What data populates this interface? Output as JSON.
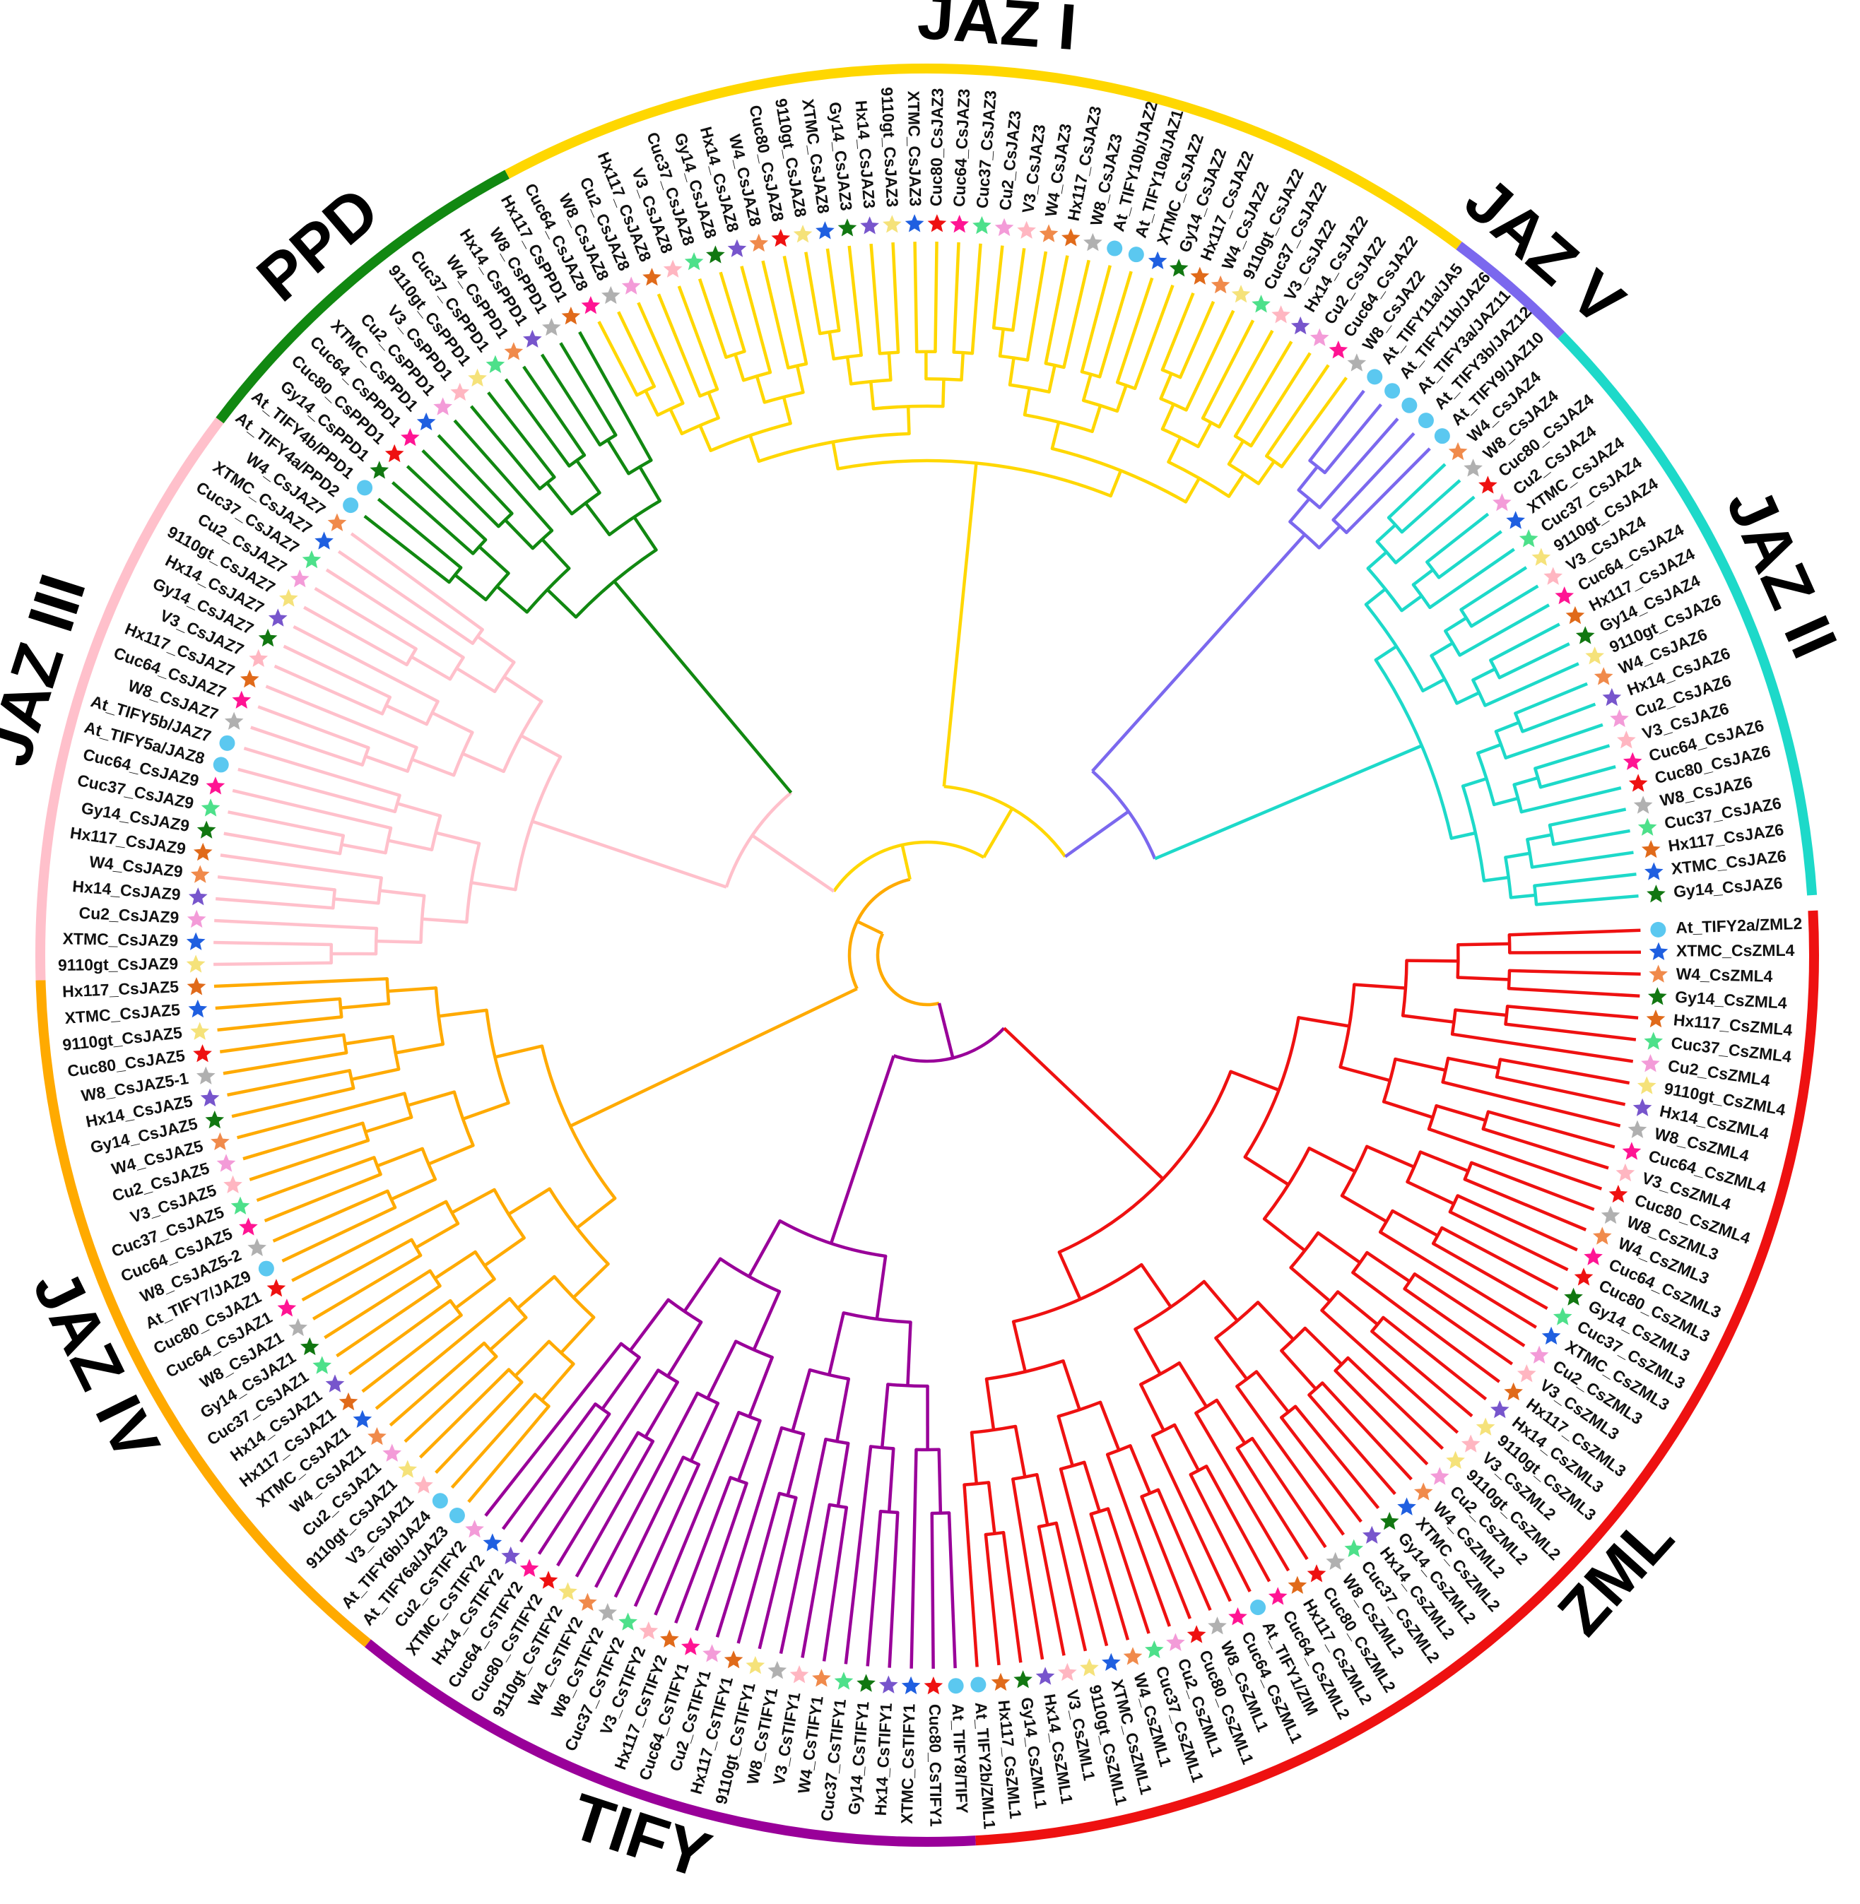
{
  "tree": {
    "clades": [
      {
        "name": "JAZ I",
        "color": "#FFD700"
      },
      {
        "name": "JAZ V",
        "color": "#7B68EE"
      },
      {
        "name": "JAZ II",
        "color": "#1DD9C9"
      },
      {
        "name": "ZML",
        "color": "#EE1111"
      },
      {
        "name": "TIFY",
        "color": "#990099"
      },
      {
        "name": "JAZ IV",
        "color": "#FFAA00"
      },
      {
        "name": "JAZ III",
        "color": "#FFC0CB"
      },
      {
        "name": "PPD",
        "color": "#118811"
      }
    ],
    "legend_markers": {
      "At": "circle",
      "XTMC": "blue-star",
      "W4": "orange-star",
      "Gy14": "green-star",
      "Hx117": "dark-orange-star",
      "Cuc37": "light-green-star",
      "Cu2": "pink-star",
      "9110gt": "yellow-star",
      "Hx14": "purple-star",
      "W8": "grey-star",
      "Cuc64": "magenta-star",
      "V3": "light-pink-star",
      "Cuc80": "red-star"
    },
    "leaves": [
      {
        "label": "At_TIFY2a/ZML2",
        "clade": 3
      },
      {
        "label": "XTMC_CsZML4",
        "clade": 3
      },
      {
        "label": "W4_CsZML4",
        "clade": 3
      },
      {
        "label": "Gy14_CsZML4",
        "clade": 3
      },
      {
        "label": "Hx117_CsZML4",
        "clade": 3
      },
      {
        "label": "Cuc37_CsZML4",
        "clade": 3
      },
      {
        "label": "Cu2_CsZML4",
        "clade": 3
      },
      {
        "label": "9110gt_CsZML4",
        "clade": 3
      },
      {
        "label": "Hx14_CsZML4",
        "clade": 3
      },
      {
        "label": "W8_CsZML4",
        "clade": 3
      },
      {
        "label": "Cuc64_CsZML4",
        "clade": 3
      },
      {
        "label": "V3_CsZML4",
        "clade": 3
      },
      {
        "label": "Cuc80_CsZML4",
        "clade": 3
      },
      {
        "label": "W8_CsZML3",
        "clade": 3
      },
      {
        "label": "W4_CsZML3",
        "clade": 3
      },
      {
        "label": "Cuc64_CsZML3",
        "clade": 3
      },
      {
        "label": "Cuc80_CsZML3",
        "clade": 3
      },
      {
        "label": "Gy14_CsZML3",
        "clade": 3
      },
      {
        "label": "Cuc37_CsZML3",
        "clade": 3
      },
      {
        "label": "XTMC_CsZML3",
        "clade": 3
      },
      {
        "label": "Cu2_CsZML3",
        "clade": 3
      },
      {
        "label": "V3_CsZML3",
        "clade": 3
      },
      {
        "label": "Hx117_CsZML3",
        "clade": 3
      },
      {
        "label": "Hx14_CsZML3",
        "clade": 3
      },
      {
        "label": "9110gt_CsZML3",
        "clade": 3
      },
      {
        "label": "V3_CsZML2",
        "clade": 3
      },
      {
        "label": "9110gt_CsZML2",
        "clade": 3
      },
      {
        "label": "Cu2_CsZML2",
        "clade": 3
      },
      {
        "label": "W4_CsZML2",
        "clade": 3
      },
      {
        "label": "XTMC_CsZML2",
        "clade": 3
      },
      {
        "label": "Gy14_CsZML2",
        "clade": 3
      },
      {
        "label": "Hx14_CsZML2",
        "clade": 3
      },
      {
        "label": "Cuc37_CsZML2",
        "clade": 3
      },
      {
        "label": "W8_CsZML2",
        "clade": 3
      },
      {
        "label": "Cuc80_CsZML2",
        "clade": 3
      },
      {
        "label": "Hx117_CsZML2",
        "clade": 3
      },
      {
        "label": "Cuc64_CsZML2",
        "clade": 3
      },
      {
        "label": "At_TIFY1/ZIM",
        "clade": 3
      },
      {
        "label": "Cuc64_CsZML1",
        "clade": 3
      },
      {
        "label": "W8_CsZML1",
        "clade": 3
      },
      {
        "label": "Cuc80_CsZML1",
        "clade": 3
      },
      {
        "label": "Cu2_CsZML1",
        "clade": 3
      },
      {
        "label": "Cuc37_CsZML1",
        "clade": 3
      },
      {
        "label": "W4_CsZML1",
        "clade": 3
      },
      {
        "label": "XTMC_CsZML1",
        "clade": 3
      },
      {
        "label": "9110gt_CsZML1",
        "clade": 3
      },
      {
        "label": "V3_CsZML1",
        "clade": 3
      },
      {
        "label": "Hx14_CsZML1",
        "clade": 3
      },
      {
        "label": "Gy14_CsZML1",
        "clade": 3
      },
      {
        "label": "Hx117_CsZML1",
        "clade": 3
      },
      {
        "label": "At_TIFY2b/ZML1",
        "clade": 3
      },
      {
        "label": "At_TIFY8/TIFY",
        "clade": 4
      },
      {
        "label": "Cuc80_CsTIFY1",
        "clade": 4
      },
      {
        "label": "XTMC_CsTIFY1",
        "clade": 4
      },
      {
        "label": "Hx14_CsTIFY1",
        "clade": 4
      },
      {
        "label": "Gy14_CsTIFY1",
        "clade": 4
      },
      {
        "label": "Cuc37_CsTIFY1",
        "clade": 4
      },
      {
        "label": "W4_CsTIFY1",
        "clade": 4
      },
      {
        "label": "V3_CsTIFY1",
        "clade": 4
      },
      {
        "label": "W8_CsTIFY1",
        "clade": 4
      },
      {
        "label": "9110gt_CsTIFY1",
        "clade": 4
      },
      {
        "label": "Hx117_CsTIFY1",
        "clade": 4
      },
      {
        "label": "Cu2_CsTIFY1",
        "clade": 4
      },
      {
        "label": "Cuc64_CsTIFY1",
        "clade": 4
      },
      {
        "label": "Hx117_CsTIFY2",
        "clade": 4
      },
      {
        "label": "V3_CsTIFY2",
        "clade": 4
      },
      {
        "label": "Cuc37_CsTIFY2",
        "clade": 4
      },
      {
        "label": "W8_CsTIFY2",
        "clade": 4
      },
      {
        "label": "W4_CsTIFY2",
        "clade": 4
      },
      {
        "label": "9110gt_CsTIFY2",
        "clade": 4
      },
      {
        "label": "Cuc80_CsTIFY2",
        "clade": 4
      },
      {
        "label": "Cuc64_CsTIFY2",
        "clade": 4
      },
      {
        "label": "Hx14_CsTIFY2",
        "clade": 4
      },
      {
        "label": "XTMC_CsTIFY2",
        "clade": 4
      },
      {
        "label": "Cu2_CsTIFY2",
        "clade": 4
      },
      {
        "label": "At_TIFY6a/JAZ3",
        "clade": 5
      },
      {
        "label": "At_TIFY6b/JAZ4",
        "clade": 5
      },
      {
        "label": "V3_CsJAZ1",
        "clade": 5
      },
      {
        "label": "9110gt_CsJAZ1",
        "clade": 5
      },
      {
        "label": "Cu2_CsJAZ1",
        "clade": 5
      },
      {
        "label": "W4_CsJAZ1",
        "clade": 5
      },
      {
        "label": "XTMC_CsJAZ1",
        "clade": 5
      },
      {
        "label": "Hx117_CsJAZ1",
        "clade": 5
      },
      {
        "label": "Hx14_CsJAZ1",
        "clade": 5
      },
      {
        "label": "Cuc37_CsJAZ1",
        "clade": 5
      },
      {
        "label": "Gy14_CsJAZ1",
        "clade": 5
      },
      {
        "label": "W8_CsJAZ1",
        "clade": 5
      },
      {
        "label": "Cuc64_CsJAZ1",
        "clade": 5
      },
      {
        "label": "Cuc80_CsJAZ1",
        "clade": 5
      },
      {
        "label": "At_TIFY7/JAZ9",
        "clade": 5
      },
      {
        "label": "W8_CsJAZ5-2",
        "clade": 5
      },
      {
        "label": "Cuc64_CsJAZ5",
        "clade": 5
      },
      {
        "label": "Cuc37_CsJAZ5",
        "clade": 5
      },
      {
        "label": "V3_CsJAZ5",
        "clade": 5
      },
      {
        "label": "Cu2_CsJAZ5",
        "clade": 5
      },
      {
        "label": "W4_CsJAZ5",
        "clade": 5
      },
      {
        "label": "Gy14_CsJAZ5",
        "clade": 5
      },
      {
        "label": "Hx14_CsJAZ5",
        "clade": 5
      },
      {
        "label": "W8_CsJAZ5-1",
        "clade": 5
      },
      {
        "label": "Cuc80_CsJAZ5",
        "clade": 5
      },
      {
        "label": "9110gt_CsJAZ5",
        "clade": 5
      },
      {
        "label": "XTMC_CsJAZ5",
        "clade": 5
      },
      {
        "label": "Hx117_CsJAZ5",
        "clade": 5
      },
      {
        "label": "9110gt_CsJAZ9",
        "clade": 6
      },
      {
        "label": "XTMC_CsJAZ9",
        "clade": 6
      },
      {
        "label": "Cu2_CsJAZ9",
        "clade": 6
      },
      {
        "label": "Hx14_CsJAZ9",
        "clade": 6
      },
      {
        "label": "W4_CsJAZ9",
        "clade": 6
      },
      {
        "label": "Hx117_CsJAZ9",
        "clade": 6
      },
      {
        "label": "Gy14_CsJAZ9",
        "clade": 6
      },
      {
        "label": "Cuc37_CsJAZ9",
        "clade": 6
      },
      {
        "label": "Cuc64_CsJAZ9",
        "clade": 6
      },
      {
        "label": "At_TIFY5a/JAZ8",
        "clade": 6
      },
      {
        "label": "At_TIFY5b/JAZ7",
        "clade": 6
      },
      {
        "label": "W8_CsJAZ7",
        "clade": 6
      },
      {
        "label": "Cuc64_CsJAZ7",
        "clade": 6
      },
      {
        "label": "Hx117_CsJAZ7",
        "clade": 6
      },
      {
        "label": "V3_CsJAZ7",
        "clade": 6
      },
      {
        "label": "Gy14_CsJAZ7",
        "clade": 6
      },
      {
        "label": "Hx14_CsJAZ7",
        "clade": 6
      },
      {
        "label": "9110gt_CsJAZ7",
        "clade": 6
      },
      {
        "label": "Cu2_CsJAZ7",
        "clade": 6
      },
      {
        "label": "Cuc37_CsJAZ7",
        "clade": 6
      },
      {
        "label": "XTMC_CsJAZ7",
        "clade": 6
      },
      {
        "label": "W4_CsJAZ7",
        "clade": 6
      },
      {
        "label": "At_TIFY4a/PPD2",
        "clade": 7
      },
      {
        "label": "At_TIFY4b/PPD1",
        "clade": 7
      },
      {
        "label": "Gy14_CsPPD1",
        "clade": 7
      },
      {
        "label": "Cuc80_CsPPD1",
        "clade": 7
      },
      {
        "label": "Cuc64_CsPPD1",
        "clade": 7
      },
      {
        "label": "XTMC_CsPPD1",
        "clade": 7
      },
      {
        "label": "Cu2_CsPPD1",
        "clade": 7
      },
      {
        "label": "V3_CsPPD1",
        "clade": 7
      },
      {
        "label": "9110gt_CsPPD1",
        "clade": 7
      },
      {
        "label": "Cuc37_CsPPD1",
        "clade": 7
      },
      {
        "label": "W4_CsPPD1",
        "clade": 7
      },
      {
        "label": "Hx14_CsPPD1",
        "clade": 7
      },
      {
        "label": "W8_CsPPD1",
        "clade": 7
      },
      {
        "label": "Hx117_CsPPD1",
        "clade": 7
      },
      {
        "label": "Cuc64_CsJAZ8",
        "clade": 0
      },
      {
        "label": "W8_CsJAZ8",
        "clade": 0
      },
      {
        "label": "Cu2_CsJAZ8",
        "clade": 0
      },
      {
        "label": "Hx117_CsJAZ8",
        "clade": 0
      },
      {
        "label": "V3_CsJAZ8",
        "clade": 0
      },
      {
        "label": "Cuc37_CsJAZ8",
        "clade": 0
      },
      {
        "label": "Gy14_CsJAZ8",
        "clade": 0
      },
      {
        "label": "Hx14_CsJAZ8",
        "clade": 0
      },
      {
        "label": "W4_CsJAZ8",
        "clade": 0
      },
      {
        "label": "Cuc80_CsJAZ8",
        "clade": 0
      },
      {
        "label": "9110gt_CsJAZ8",
        "clade": 0
      },
      {
        "label": "XTMC_CsJAZ8",
        "clade": 0
      },
      {
        "label": "Gy14_CsJAZ3",
        "clade": 0
      },
      {
        "label": "Hx14_CsJAZ3",
        "clade": 0
      },
      {
        "label": "9110gt_CsJAZ3",
        "clade": 0
      },
      {
        "label": "XTMC_CsJAZ3",
        "clade": 0
      },
      {
        "label": "Cuc80_CsJAZ3",
        "clade": 0
      },
      {
        "label": "Cuc64_CsJAZ3",
        "clade": 0
      },
      {
        "label": "Cuc37_CsJAZ3",
        "clade": 0
      },
      {
        "label": "Cu2_CsJAZ3",
        "clade": 0
      },
      {
        "label": "V3_CsJAZ3",
        "clade": 0
      },
      {
        "label": "W4_CsJAZ3",
        "clade": 0
      },
      {
        "label": "Hx117_CsJAZ3",
        "clade": 0
      },
      {
        "label": "W8_CsJAZ3",
        "clade": 0
      },
      {
        "label": "At_TIFY10b/JAZ2",
        "clade": 0
      },
      {
        "label": "At_TIFY10a/JAZ1",
        "clade": 0
      },
      {
        "label": "XTMC_CsJAZ2",
        "clade": 0
      },
      {
        "label": "Gy14_CsJAZ2",
        "clade": 0
      },
      {
        "label": "Hx117_CsJAZ2",
        "clade": 0
      },
      {
        "label": "W4_CsJAZ2",
        "clade": 0
      },
      {
        "label": "9110gt_CsJAZ2",
        "clade": 0
      },
      {
        "label": "Cuc37_CsJAZ2",
        "clade": 0
      },
      {
        "label": "V3_CsJAZ2",
        "clade": 0
      },
      {
        "label": "Hx14_CsJAZ2",
        "clade": 0
      },
      {
        "label": "Cu2_CsJAZ2",
        "clade": 0
      },
      {
        "label": "Cuc64_CsJAZ2",
        "clade": 0
      },
      {
        "label": "W8_CsJAZ2",
        "clade": 0
      },
      {
        "label": "At_TIFY11a/JA5",
        "clade": 1
      },
      {
        "label": "At_TIFY11b/JAZ6",
        "clade": 1
      },
      {
        "label": "At_TIFY3a/JAZ11",
        "clade": 1
      },
      {
        "label": "At_TIFY3b/JAZ12",
        "clade": 1
      },
      {
        "label": "At_TIFY9/JAZ10",
        "clade": 1
      },
      {
        "label": "W4_CsJAZ4",
        "clade": 2
      },
      {
        "label": "W8_CsJAZ4",
        "clade": 2
      },
      {
        "label": "Cuc80_CsJAZ4",
        "clade": 2
      },
      {
        "label": "Cu2_CsJAZ4",
        "clade": 2
      },
      {
        "label": "XTMC_CsJAZ4",
        "clade": 2
      },
      {
        "label": "Cuc37_CsJAZ4",
        "clade": 2
      },
      {
        "label": "9110gt_CsJAZ4",
        "clade": 2
      },
      {
        "label": "V3_CsJAZ4",
        "clade": 2
      },
      {
        "label": "Cuc64_CsJAZ4",
        "clade": 2
      },
      {
        "label": "Hx117_CsJAZ4",
        "clade": 2
      },
      {
        "label": "Gy14_CsJAZ4",
        "clade": 2
      },
      {
        "label": "9110gt_CsJAZ6",
        "clade": 2
      },
      {
        "label": "W4_CsJAZ6",
        "clade": 2
      },
      {
        "label": "Hx14_CsJAZ6",
        "clade": 2
      },
      {
        "label": "Cu2_CsJAZ6",
        "clade": 2
      },
      {
        "label": "V3_CsJAZ6",
        "clade": 2
      },
      {
        "label": "Cuc64_CsJAZ6",
        "clade": 2
      },
      {
        "label": "Cuc80_CsJAZ6",
        "clade": 2
      },
      {
        "label": "W8_CsJAZ6",
        "clade": 2
      },
      {
        "label": "Cuc37_CsJAZ6",
        "clade": 2
      },
      {
        "label": "Hx117_CsJAZ6",
        "clade": 2
      },
      {
        "label": "XTMC_CsJAZ6",
        "clade": 2
      },
      {
        "label": "Gy14_CsJAZ6",
        "clade": 2
      }
    ]
  }
}
